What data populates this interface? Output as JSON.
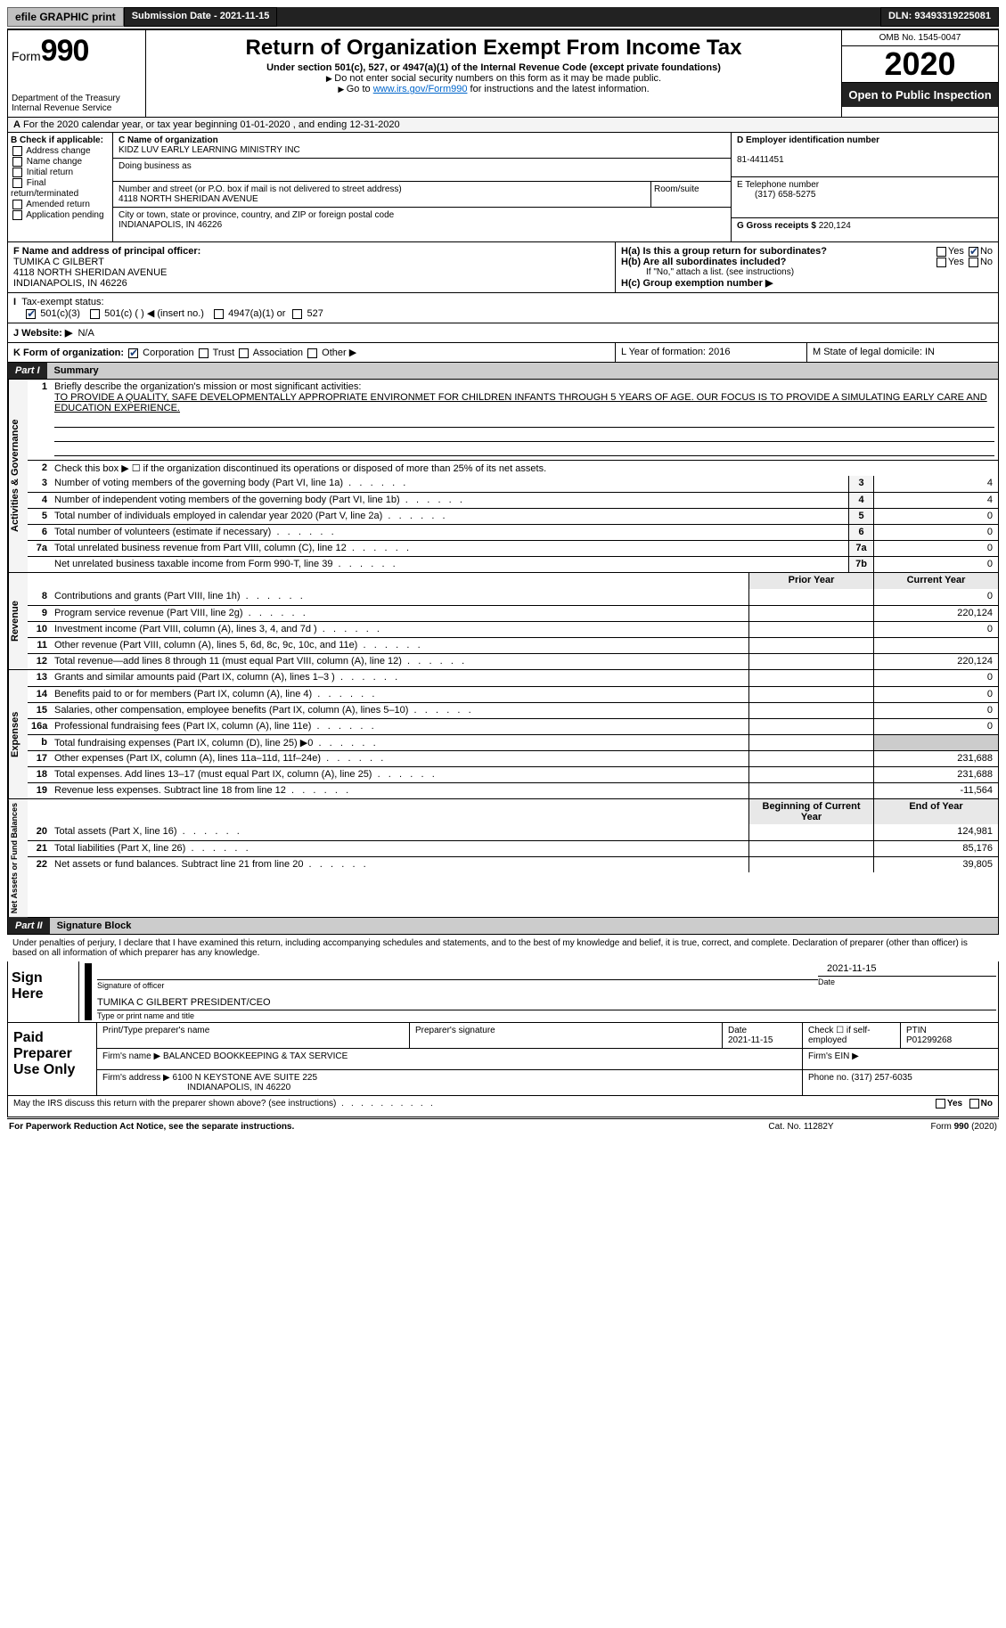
{
  "topbar": {
    "efile_label": "efile GRAPHIC print",
    "submission_label": "Submission Date - 2021-11-15",
    "dln_label": "DLN: 93493319225081"
  },
  "header": {
    "form_prefix": "Form",
    "form_num": "990",
    "title": "Return of Organization Exempt From Income Tax",
    "subtitle": "Under section 501(c), 527, or 4947(a)(1) of the Internal Revenue Code (except private foundations)",
    "note1": "Do not enter social security numbers on this form as it may be made public.",
    "note2_pre": "Go to ",
    "note2_link": "www.irs.gov/Form990",
    "note2_post": " for instructions and the latest information.",
    "dept": "Department of the Treasury\nInternal Revenue Service",
    "omb": "OMB No. 1545-0047",
    "year": "2020",
    "open_pub": "Open to Public Inspection"
  },
  "row_a": "For the 2020 calendar year, or tax year beginning 01-01-2020   , and ending 12-31-2020",
  "col_b": {
    "title": "B Check if applicable:",
    "opts": [
      "Address change",
      "Name change",
      "Initial return",
      "Final return/terminated",
      "Amended return",
      "Application pending"
    ]
  },
  "block_c": {
    "name_lbl": "C Name of organization",
    "name": "KIDZ LUV EARLY LEARNING MINISTRY INC",
    "dba_lbl": "Doing business as",
    "addr_lbl": "Number and street (or P.O. box if mail is not delivered to street address)",
    "addr": "4118 NORTH SHERIDAN AVENUE",
    "room_lbl": "Room/suite",
    "city_lbl": "City or town, state or province, country, and ZIP or foreign postal code",
    "city": "INDIANAPOLIS, IN  46226"
  },
  "block_d": {
    "lbl": "D Employer identification number",
    "val": "81-4411451"
  },
  "block_e": {
    "lbl": "E Telephone number",
    "val": "(317) 658-5275"
  },
  "block_g": {
    "lbl": "G Gross receipts $",
    "val": "220,124"
  },
  "block_f": {
    "lbl": "F  Name and address of principal officer:",
    "name": "TUMIKA C GILBERT",
    "addr1": "4118 NORTH SHERIDAN AVENUE",
    "addr2": "INDIANAPOLIS, IN  46226"
  },
  "block_h": {
    "ha": "H(a)  Is this a group return for subordinates?",
    "hb": "H(b)  Are all subordinates included?",
    "hb_note": "If \"No,\" attach a list. (see instructions)",
    "hc": "H(c)  Group exemption number ▶",
    "yes": "Yes",
    "no": "No"
  },
  "row_i": {
    "lbl": "Tax-exempt status:",
    "o1": "501(c)(3)",
    "o2": "501(c) (  ) ◀ (insert no.)",
    "o3": "4947(a)(1) or",
    "o4": "527"
  },
  "row_j": {
    "lbl": "J   Website: ▶",
    "val": "N/A"
  },
  "row_k": {
    "lbl": "K Form of organization:",
    "o1": "Corporation",
    "o2": "Trust",
    "o3": "Association",
    "o4": "Other ▶"
  },
  "row_lm": {
    "l": "L Year of formation: 2016",
    "m": "M State of legal domicile: IN"
  },
  "part1": {
    "hdr_num": "Part I",
    "hdr_title": "Summary",
    "mission_lbl": "Briefly describe the organization's mission or most significant activities:",
    "mission": "TO PROVIDE A QUALITY, SAFE DEVELOPMENTALLY APPROPRIATE ENVIRONMET FOR CHILDREN INFANTS THROUGH 5 YEARS OF AGE. OUR FOCUS IS TO PROVIDE A SIMULATING EARLY CARE AND EDUCATION EXPERIENCE.",
    "line2": "Check this box ▶ ☐  if the organization discontinued its operations or disposed of more than 25% of its net assets.",
    "lines_gov": [
      {
        "n": "3",
        "t": "Number of voting members of the governing body (Part VI, line 1a)",
        "m": "3",
        "v": "4"
      },
      {
        "n": "4",
        "t": "Number of independent voting members of the governing body (Part VI, line 1b)",
        "m": "4",
        "v": "4"
      },
      {
        "n": "5",
        "t": "Total number of individuals employed in calendar year 2020 (Part V, line 2a)",
        "m": "5",
        "v": "0"
      },
      {
        "n": "6",
        "t": "Total number of volunteers (estimate if necessary)",
        "m": "6",
        "v": "0"
      },
      {
        "n": "7a",
        "t": "Total unrelated business revenue from Part VIII, column (C), line 12",
        "m": "7a",
        "v": "0"
      },
      {
        "n": "",
        "t": "Net unrelated business taxable income from Form 990-T, line 39",
        "m": "7b",
        "v": "0"
      }
    ],
    "prior_hdr": "Prior Year",
    "curr_hdr": "Current Year",
    "rev": [
      {
        "n": "8",
        "t": "Contributions and grants (Part VIII, line 1h)",
        "p": "",
        "c": "0"
      },
      {
        "n": "9",
        "t": "Program service revenue (Part VIII, line 2g)",
        "p": "",
        "c": "220,124"
      },
      {
        "n": "10",
        "t": "Investment income (Part VIII, column (A), lines 3, 4, and 7d )",
        "p": "",
        "c": "0"
      },
      {
        "n": "11",
        "t": "Other revenue (Part VIII, column (A), lines 5, 6d, 8c, 9c, 10c, and 11e)",
        "p": "",
        "c": ""
      },
      {
        "n": "12",
        "t": "Total revenue—add lines 8 through 11 (must equal Part VIII, column (A), line 12)",
        "p": "",
        "c": "220,124"
      }
    ],
    "exp": [
      {
        "n": "13",
        "t": "Grants and similar amounts paid (Part IX, column (A), lines 1–3 )",
        "p": "",
        "c": "0"
      },
      {
        "n": "14",
        "t": "Benefits paid to or for members (Part IX, column (A), line 4)",
        "p": "",
        "c": "0"
      },
      {
        "n": "15",
        "t": "Salaries, other compensation, employee benefits (Part IX, column (A), lines 5–10)",
        "p": "",
        "c": "0"
      },
      {
        "n": "16a",
        "t": "Professional fundraising fees (Part IX, column (A), line 11e)",
        "p": "",
        "c": "0"
      },
      {
        "n": "b",
        "t": "Total fundraising expenses (Part IX, column (D), line 25) ▶0",
        "p": "gray",
        "c": "gray"
      },
      {
        "n": "17",
        "t": "Other expenses (Part IX, column (A), lines 11a–11d, 11f–24e)",
        "p": "",
        "c": "231,688"
      },
      {
        "n": "18",
        "t": "Total expenses. Add lines 13–17 (must equal Part IX, column (A), line 25)",
        "p": "",
        "c": "231,688"
      },
      {
        "n": "19",
        "t": "Revenue less expenses. Subtract line 18 from line 12",
        "p": "",
        "c": "-11,564"
      }
    ],
    "boy_hdr": "Beginning of Current Year",
    "eoy_hdr": "End of Year",
    "net": [
      {
        "n": "20",
        "t": "Total assets (Part X, line 16)",
        "p": "",
        "c": "124,981"
      },
      {
        "n": "21",
        "t": "Total liabilities (Part X, line 26)",
        "p": "",
        "c": "85,176"
      },
      {
        "n": "22",
        "t": "Net assets or fund balances. Subtract line 21 from line 20",
        "p": "",
        "c": "39,805"
      }
    ],
    "side_gov": "Activities & Governance",
    "side_rev": "Revenue",
    "side_exp": "Expenses",
    "side_net": "Net Assets or Fund Balances"
  },
  "part2": {
    "hdr_num": "Part II",
    "hdr_title": "Signature Block",
    "declare": "Under penalties of perjury, I declare that I have examined this return, including accompanying schedules and statements, and to the best of my knowledge and belief, it is true, correct, and complete. Declaration of preparer (other than officer) is based on all information of which preparer has any knowledge.",
    "sign_here": "Sign Here",
    "sig_officer_lbl": "Signature of officer",
    "date_lbl": "Date",
    "sig_date": "2021-11-15",
    "name_title": "TUMIKA C GILBERT  PRESIDENT/CEO",
    "name_title_lbl": "Type or print name and title",
    "paid": "Paid Preparer Use Only",
    "p_name_lbl": "Print/Type preparer's name",
    "p_sig_lbl": "Preparer's signature",
    "p_date_lbl": "Date",
    "p_date": "2021-11-15",
    "p_check_lbl": "Check ☐ if self-employed",
    "ptin_lbl": "PTIN",
    "ptin": "P01299268",
    "firm_name_lbl": "Firm's name    ▶",
    "firm_name": "BALANCED BOOKKEEPING & TAX SERVICE",
    "firm_ein_lbl": "Firm's EIN ▶",
    "firm_addr_lbl": "Firm's address ▶",
    "firm_addr": "6100 N KEYSTONE AVE SUITE 225",
    "firm_city": "INDIANAPOLIS, IN  46220",
    "phone_lbl": "Phone no.",
    "phone": "(317) 257-6035",
    "discuss": "May the IRS discuss this return with the preparer shown above? (see instructions)",
    "yes": "Yes",
    "no": "No"
  },
  "footer": {
    "pra": "For Paperwork Reduction Act Notice, see the separate instructions.",
    "cat": "Cat. No. 11282Y",
    "form": "Form 990 (2020)"
  }
}
